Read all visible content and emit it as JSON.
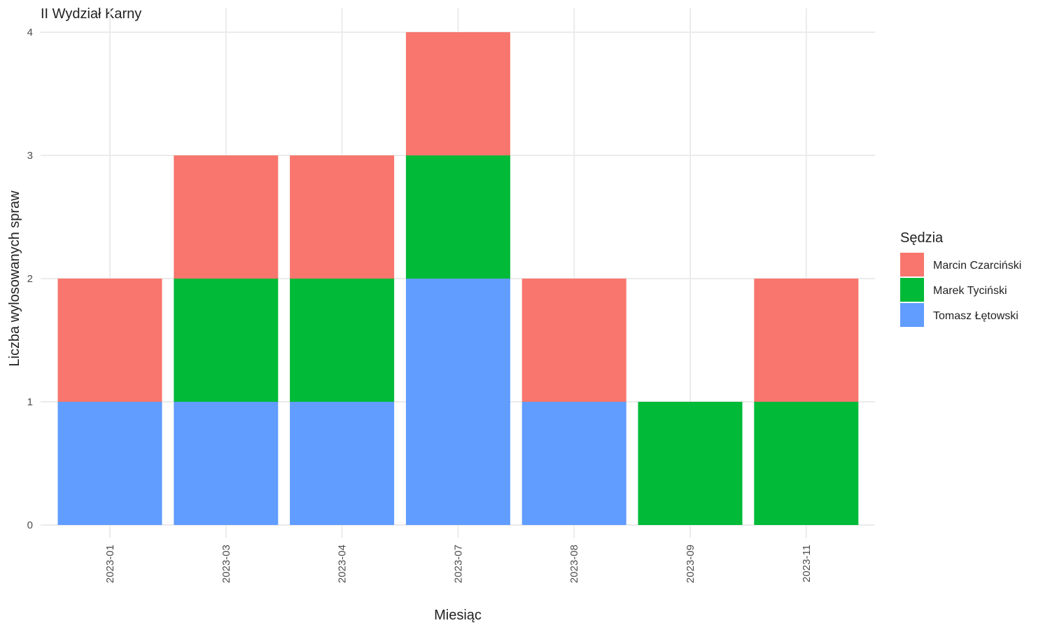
{
  "chart_data": {
    "type": "bar",
    "stacked": true,
    "title": "II Wydział Karny",
    "xlabel": "Miesiąc",
    "ylabel": "Liczba wylosowanych spraw",
    "ylim": [
      0,
      4
    ],
    "yticks": [
      0,
      1,
      2,
      3,
      4
    ],
    "grid": true,
    "legend_position": "right",
    "legend_title": "Sędzia",
    "categories": [
      "2023-01",
      "2023-03",
      "2023-04",
      "2023-07",
      "2023-08",
      "2023-09",
      "2023-11"
    ],
    "series": [
      {
        "name": "Marcin Czarciński",
        "color": "#F8766D",
        "values": [
          1,
          1,
          1,
          1,
          1,
          0,
          1
        ]
      },
      {
        "name": "Marek Tyciński",
        "color": "#00BA38",
        "values": [
          0,
          1,
          1,
          1,
          0,
          1,
          1
        ]
      },
      {
        "name": "Tomasz Łętowski",
        "color": "#619CFF",
        "values": [
          1,
          1,
          1,
          2,
          1,
          0,
          0
        ]
      }
    ]
  }
}
